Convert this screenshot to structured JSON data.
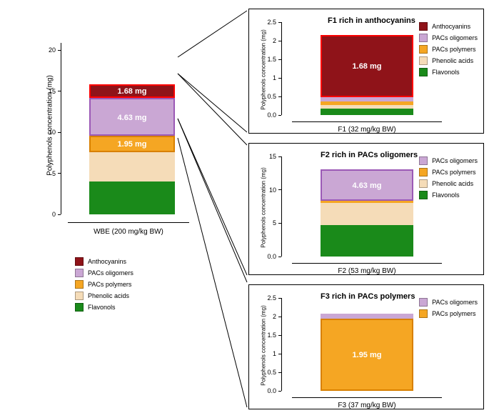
{
  "colors": {
    "anthocyanins": "#8f1319",
    "anthocyanins_border": "#ff0000",
    "pacs_oligomers": "#caa7d4",
    "pacs_oligomers_border": "#9b59b6",
    "pacs_polymers": "#f5a623",
    "pacs_polymers_border": "#d88000",
    "phenolic_acids": "#f5dcb8",
    "flavonols": "#1a8a1a",
    "background": "#ffffff",
    "axis": "#000000",
    "text": "#000000",
    "label_white": "#ffffff"
  },
  "legend_labels": {
    "anthocyanins": "Anthocyanins",
    "pacs_oligomers": "PACs oligomers",
    "pacs_polymers": "PACs polymers",
    "phenolic_acids": "Phenolic acids",
    "flavonols": "Flavonols"
  },
  "main": {
    "ylabel": "Polyphenols concentration (mg)",
    "xlabel": "WBE (200 mg/kg BW)",
    "ylim": [
      0,
      20
    ],
    "yticks": [
      0,
      5,
      10,
      15,
      20
    ],
    "segments": [
      {
        "key": "flavonols",
        "value": 4.0
      },
      {
        "key": "phenolic_acids",
        "value": 3.6
      },
      {
        "key": "pacs_polymers",
        "value": 1.95,
        "label": "1.95 mg",
        "highlight": "pacs_polymers_border"
      },
      {
        "key": "pacs_oligomers",
        "value": 4.63,
        "label": "4.63 mg",
        "highlight": "pacs_oligomers_border"
      },
      {
        "key": "anthocyanins",
        "value": 1.68,
        "label": "1.68 mg",
        "highlight": "anthocyanins_border"
      }
    ]
  },
  "f1": {
    "title": "F1 rich in anthocyanins",
    "ylabel": "Polyphenols concentration (mg)",
    "xlabel": "F1 (32 mg/kg BW)",
    "ylim": [
      0,
      2.5
    ],
    "yticks": [
      0.0,
      0.5,
      1.0,
      1.5,
      2.0,
      2.5
    ],
    "segments": [
      {
        "key": "flavonols",
        "value": 0.18
      },
      {
        "key": "phenolic_acids",
        "value": 0.08
      },
      {
        "key": "pacs_polymers",
        "value": 0.1
      },
      {
        "key": "pacs_oligomers",
        "value": 0.12
      },
      {
        "key": "anthocyanins",
        "value": 1.68,
        "label": "1.68 mg",
        "highlight": "anthocyanins_border"
      }
    ],
    "legend_keys": [
      "anthocyanins",
      "pacs_oligomers",
      "pacs_polymers",
      "phenolic_acids",
      "flavonols"
    ]
  },
  "f2": {
    "title": "F2 rich in PACs oligomers",
    "ylabel": "Polyphenols concentration (mg)",
    "xlabel": "F2 (53 mg/kg BW)",
    "ylim": [
      0,
      15
    ],
    "yticks": [
      0,
      5,
      10,
      15
    ],
    "segments": [
      {
        "key": "flavonols",
        "value": 4.7
      },
      {
        "key": "phenolic_acids",
        "value": 3.3
      },
      {
        "key": "pacs_polymers",
        "value": 0.4
      },
      {
        "key": "pacs_oligomers",
        "value": 4.63,
        "label": "4.63 mg",
        "highlight": "pacs_oligomers_border"
      }
    ],
    "legend_keys": [
      "pacs_oligomers",
      "pacs_polymers",
      "phenolic_acids",
      "flavonols"
    ]
  },
  "f3": {
    "title": "F3 rich in PACs polymers",
    "ylabel": "Polyphenols concentration (mg)",
    "xlabel": "F3 (37 mg/kg BW)",
    "ylim": [
      0,
      2.5
    ],
    "yticks": [
      0.0,
      0.5,
      1.0,
      1.5,
      2.0,
      2.5
    ],
    "segments": [
      {
        "key": "pacs_polymers",
        "value": 1.95,
        "label": "1.95 mg",
        "highlight": "pacs_polymers_border"
      },
      {
        "key": "pacs_oligomers",
        "value": 0.12
      }
    ],
    "legend_keys": [
      "pacs_oligomers",
      "pacs_polymers"
    ]
  },
  "connectors": [
    {
      "from": [
        249,
        80
      ],
      "to": [
        346,
        15
      ]
    },
    {
      "from": [
        249,
        103
      ],
      "to": [
        346,
        185
      ]
    },
    {
      "from": [
        249,
        103
      ],
      "to": [
        346,
        203
      ]
    },
    {
      "from": [
        249,
        166
      ],
      "to": [
        346,
        385
      ]
    },
    {
      "from": [
        249,
        166
      ],
      "to": [
        346,
        395
      ]
    },
    {
      "from": [
        249,
        193
      ],
      "to": [
        346,
        570
      ]
    }
  ]
}
